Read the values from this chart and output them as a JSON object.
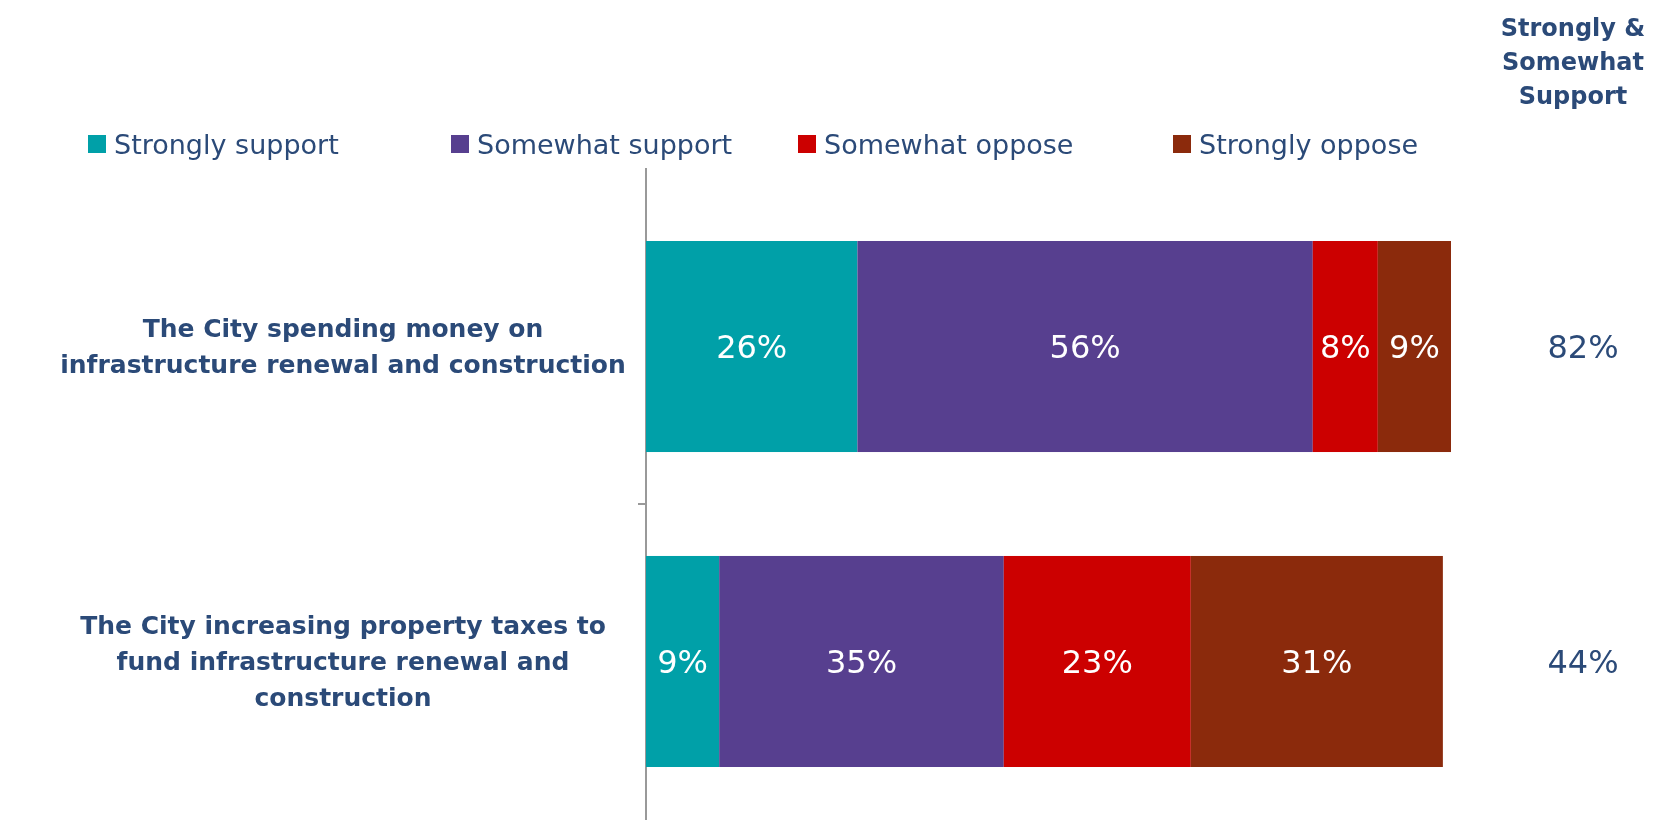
{
  "chart_data": {
    "type": "bar",
    "orientation": "horizontal",
    "stacked": true,
    "legend": "top",
    "categories": [
      "The City spending money on infrastructure renewal and construction",
      "The City increasing property taxes to fund infrastructure renewal and construction"
    ],
    "series": [
      {
        "name": "Strongly support",
        "color": "#00a0a8",
        "values": [
          26,
          9
        ],
        "value_labels": [
          "26%",
          "9%"
        ]
      },
      {
        "name": "Somewhat support",
        "color": "#573f8f",
        "values": [
          56,
          35
        ],
        "value_labels": [
          "56%",
          "35%"
        ]
      },
      {
        "name": "Somewhat oppose",
        "color": "#cc0000",
        "values": [
          8,
          23
        ],
        "value_labels": [
          "8%",
          "23%"
        ]
      },
      {
        "name": "Strongly oppose",
        "color": "#8b2a0c",
        "values": [
          9,
          31
        ],
        "value_labels": [
          "9%",
          "31%"
        ]
      }
    ],
    "annotations": [
      "Strongly & Somewhat Support",
      "82%",
      "44%"
    ]
  }
}
